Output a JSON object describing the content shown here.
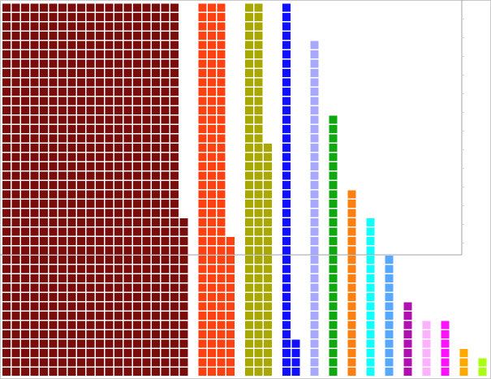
{
  "chart_data": {
    "type": "waffle",
    "series": [
      {
        "color": "#7b0c0c",
        "values": [
          777
        ]
      },
      {
        "color": "#ff4010",
        "values": [
          135
        ]
      },
      {
        "color": "#a8a800",
        "values": [
          105
        ]
      },
      {
        "color": "#1010ff",
        "values": [
          44
        ]
      },
      {
        "color": "#a8a8ff",
        "values": [
          36
        ]
      },
      {
        "color": "#10a810",
        "values": [
          28
        ]
      },
      {
        "color": "#ff8010",
        "values": [
          20
        ]
      },
      {
        "color": "#10ffff",
        "values": [
          17
        ]
      },
      {
        "color": "#58a8ff",
        "values": [
          13
        ]
      },
      {
        "color": "#b010b0",
        "values": [
          8
        ]
      },
      {
        "color": "#ffb0ff",
        "values": [
          6
        ]
      },
      {
        "color": "#ff10ff",
        "values": [
          6
        ]
      },
      {
        "color": "#ffa800",
        "values": [
          3
        ]
      },
      {
        "color": "#a8ff10",
        "values": [
          2
        ]
      }
    ]
  }
}
